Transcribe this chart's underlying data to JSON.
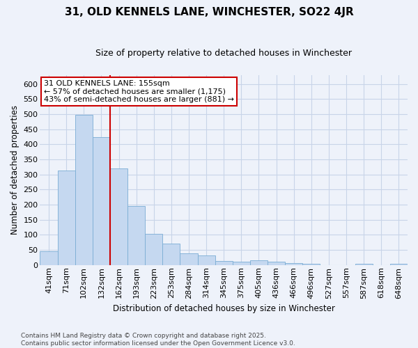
{
  "title": "31, OLD KENNELS LANE, WINCHESTER, SO22 4JR",
  "subtitle": "Size of property relative to detached houses in Winchester",
  "xlabel": "Distribution of detached houses by size in Winchester",
  "ylabel": "Number of detached properties",
  "categories": [
    "41sqm",
    "71sqm",
    "102sqm",
    "132sqm",
    "162sqm",
    "193sqm",
    "223sqm",
    "253sqm",
    "284sqm",
    "314sqm",
    "345sqm",
    "375sqm",
    "405sqm",
    "436sqm",
    "466sqm",
    "496sqm",
    "527sqm",
    "557sqm",
    "587sqm",
    "618sqm",
    "648sqm"
  ],
  "values": [
    46,
    314,
    498,
    423,
    320,
    195,
    104,
    70,
    38,
    32,
    13,
    12,
    15,
    10,
    7,
    5,
    0,
    0,
    4,
    0,
    4
  ],
  "bar_color": "#c5d8f0",
  "bar_edge_color": "#7aadd4",
  "background_color": "#eef2fa",
  "grid_color": "#c8d4e8",
  "annotation_text": "31 OLD KENNELS LANE: 155sqm\n← 57% of detached houses are smaller (1,175)\n43% of semi-detached houses are larger (881) →",
  "annotation_box_color": "#ffffff",
  "annotation_box_edge_color": "#cc0000",
  "red_line_index": 3.5,
  "footnote": "Contains HM Land Registry data © Crown copyright and database right 2025.\nContains public sector information licensed under the Open Government Licence v3.0.",
  "ylim": [
    0,
    630
  ],
  "yticks": [
    0,
    50,
    100,
    150,
    200,
    250,
    300,
    350,
    400,
    450,
    500,
    550,
    600
  ],
  "title_fontsize": 11,
  "subtitle_fontsize": 9,
  "axis_label_fontsize": 8.5,
  "tick_fontsize": 8,
  "annotation_fontsize": 8,
  "footnote_fontsize": 6.5
}
